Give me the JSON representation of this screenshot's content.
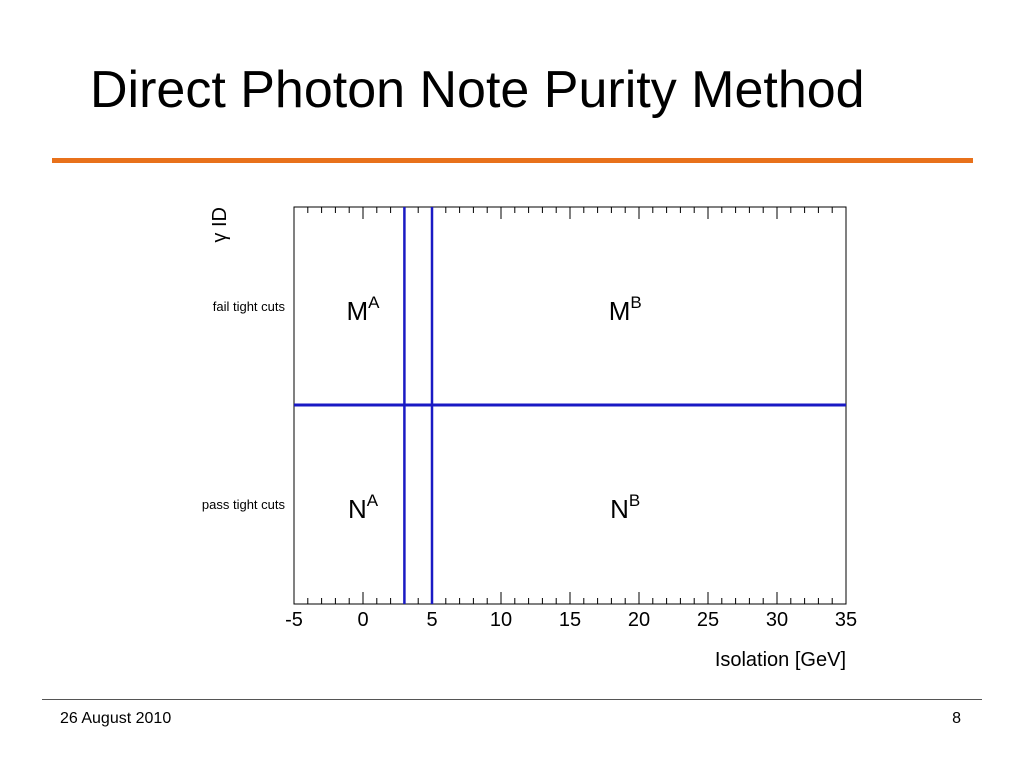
{
  "slide": {
    "title": "Direct Photon Note Purity Method",
    "accent_color": "#e8711b",
    "line_color": "#1a1ac4"
  },
  "footer": {
    "date": "26 August 2010",
    "page_number": "8"
  },
  "chart_data": {
    "type": "region-diagram",
    "xlabel": "Isolation [GeV]",
    "ylabel": "γ ID",
    "xlim": [
      -5,
      35
    ],
    "x_ticks": [
      {
        "value": -5,
        "label": "-5"
      },
      {
        "value": 0,
        "label": "0"
      },
      {
        "value": 5,
        "label": "5"
      },
      {
        "value": 10,
        "label": "10"
      },
      {
        "value": 15,
        "label": "15"
      },
      {
        "value": 20,
        "label": "20"
      },
      {
        "value": 25,
        "label": "25"
      },
      {
        "value": 30,
        "label": "30"
      },
      {
        "value": 35,
        "label": "35"
      }
    ],
    "y_categories": [
      "fail tight cuts",
      "pass tight cuts"
    ],
    "vertical_cuts": [
      3,
      5
    ],
    "regions": [
      {
        "base": "M",
        "sup": "A",
        "x": 0,
        "row": "fail tight cuts"
      },
      {
        "base": "M",
        "sup": "B",
        "x": 19,
        "row": "fail tight cuts"
      },
      {
        "base": "N",
        "sup": "A",
        "x": 0,
        "row": "pass tight cuts"
      },
      {
        "base": "N",
        "sup": "B",
        "x": 19,
        "row": "pass tight cuts"
      }
    ]
  }
}
